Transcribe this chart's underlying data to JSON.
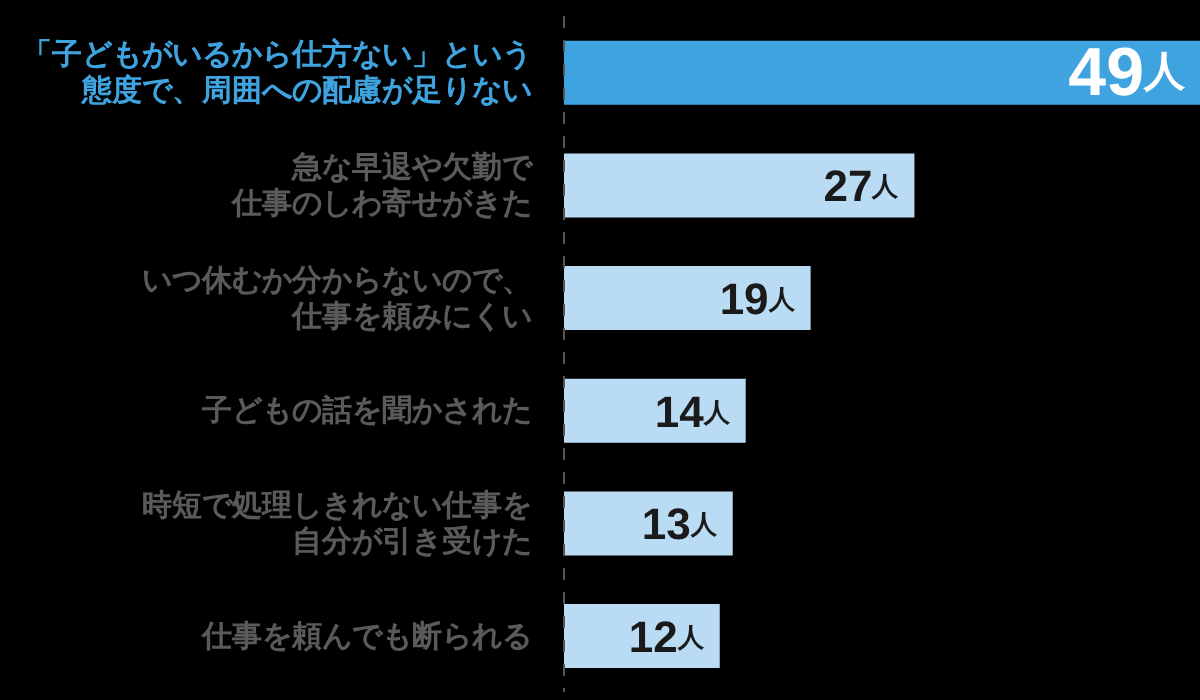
{
  "chart_data": {
    "type": "bar",
    "orientation": "horizontal",
    "categories": [
      "「子どもがいるから仕方ない」という態度で、周囲への配慮が足りない",
      "急な早退や欠勤で仕事のしわ寄せがきた",
      "いつ休むか分からないので、仕事を頼みにくい",
      "子どもの話を聞かされた",
      "時短で処理しきれない仕事を自分が引き受けた",
      "仕事を頼んでも断られる"
    ],
    "values": [
      49,
      27,
      19,
      14,
      13,
      12
    ],
    "colors": [
      "#3fa3e0",
      "#b9dcf4",
      "#b9dcf4",
      "#b9dcf4",
      "#b9dcf4",
      "#b9dcf4"
    ],
    "value_labels": [
      "49人",
      "27人",
      "19人",
      "14人",
      "13人",
      "12人"
    ]
  }
}
